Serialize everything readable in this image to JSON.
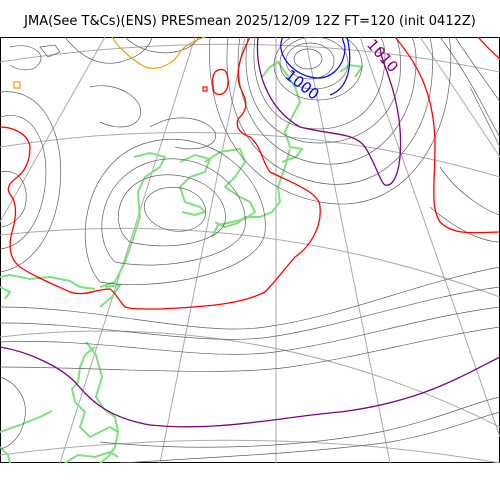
{
  "title": "JMA(See T&Cs)(ENS) PRESmean 2025/12/09 12Z FT=120 (init 0412Z)",
  "map": {
    "isobar_labels": [
      {
        "text": "1000",
        "color": "#0000ee"
      },
      {
        "text": "1010",
        "color": "#800080"
      }
    ],
    "colors": {
      "background": "#ffffff",
      "isobar": "#606060",
      "graticule": "#aaaaaa",
      "coast": "#7ee07e",
      "contour_1000": "#0000ee",
      "contour_1010": "#800080",
      "contour_1020": "#ff0000",
      "contour_1030": "#f0a000"
    }
  }
}
